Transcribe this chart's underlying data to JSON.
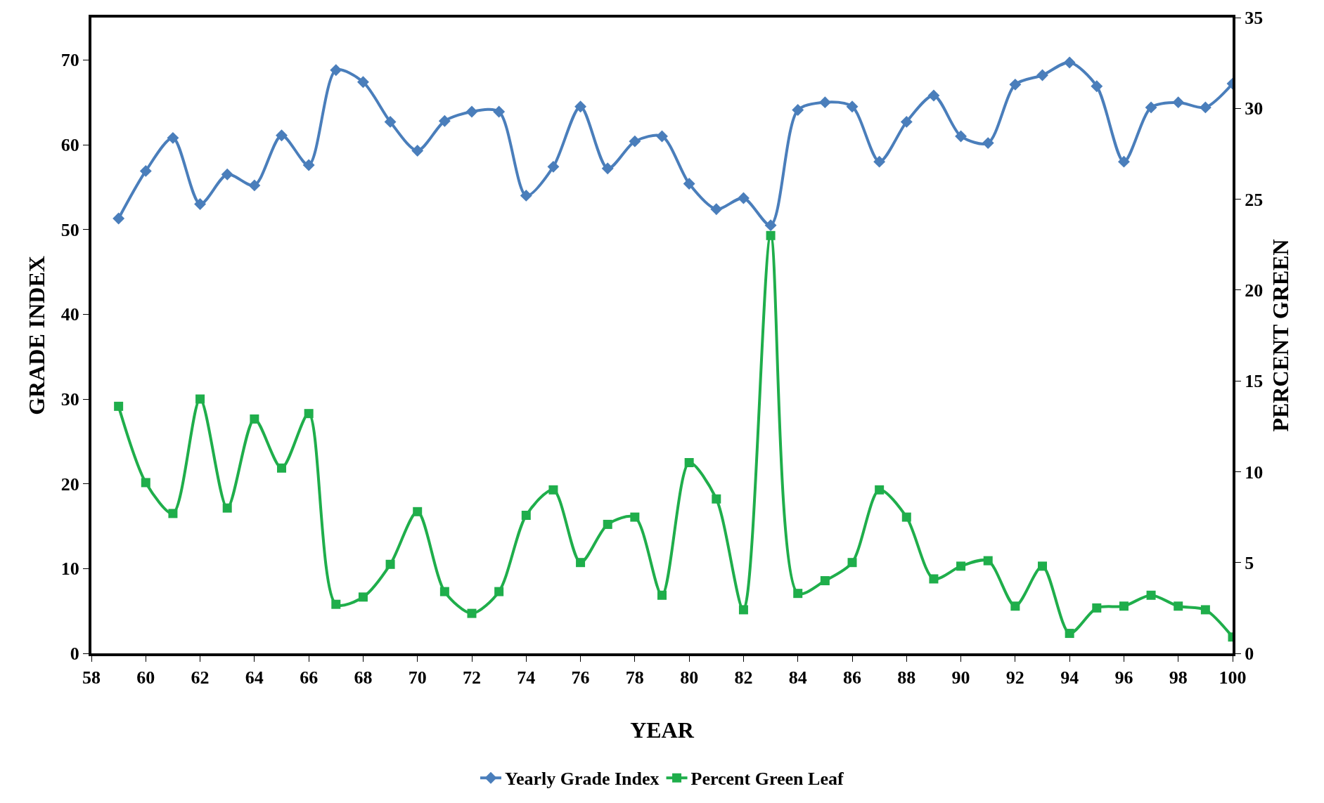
{
  "chart_data": {
    "type": "line",
    "xlabel": "YEAR",
    "ylabel": "GRADE INDEX",
    "y2label": "PERCENT GREEN",
    "x": [
      59,
      60,
      61,
      62,
      63,
      64,
      65,
      66,
      67,
      68,
      69,
      70,
      71,
      72,
      73,
      74,
      75,
      76,
      77,
      78,
      79,
      80,
      81,
      82,
      83,
      84,
      85,
      86,
      87,
      88,
      89,
      90,
      91,
      92,
      93,
      94,
      95,
      96,
      97,
      98,
      99,
      100
    ],
    "series": [
      {
        "name": "Yearly Grade Index",
        "color": "#4a7ebb",
        "marker": "diamond",
        "values": [
          51.3,
          56.9,
          60.8,
          53,
          56.5,
          55.2,
          61.1,
          57.6,
          68.8,
          67.4,
          62.7,
          59.3,
          62.8,
          63.9,
          63.9,
          54,
          57.4,
          64.5,
          57.2,
          60.4,
          61,
          55.4,
          52.4,
          53.7,
          50.5,
          64.1,
          65,
          64.5,
          58,
          62.7,
          65.8,
          61,
          60.2,
          67.1,
          68.2,
          69.7,
          66.9,
          58,
          64.4,
          65,
          64.4,
          67.2
        ]
      },
      {
        "name": "Percent Green Leaf",
        "color": "#1fae4b",
        "marker": "square",
        "axis": "y2",
        "values": [
          13.6,
          9.4,
          7.7,
          14,
          8,
          12.9,
          10.2,
          13.2,
          2.7,
          3.1,
          4.9,
          7.8,
          3.4,
          2.2,
          3.4,
          7.6,
          9,
          5,
          7.1,
          7.5,
          3.2,
          10.5,
          8.5,
          2.4,
          23,
          3.3,
          4,
          5,
          9,
          7.5,
          4.1,
          4.8,
          5.1,
          2.6,
          4.8,
          1.1,
          2.5,
          2.6,
          3.2,
          2.6,
          2.4,
          0.9
        ]
      }
    ],
    "xlim": [
      58,
      100
    ],
    "xticks": [
      {
        "value": 58,
        "label": "58"
      },
      {
        "value": 60,
        "label": "60"
      },
      {
        "value": 62,
        "label": "62"
      },
      {
        "value": 64,
        "label": "64"
      },
      {
        "value": 66,
        "label": "66"
      },
      {
        "value": 68,
        "label": "68"
      },
      {
        "value": 70,
        "label": "70"
      },
      {
        "value": 72,
        "label": "72"
      },
      {
        "value": 74,
        "label": "74"
      },
      {
        "value": 76,
        "label": "76"
      },
      {
        "value": 78,
        "label": "78"
      },
      {
        "value": 80,
        "label": "80"
      },
      {
        "value": 82,
        "label": "82"
      },
      {
        "value": 84,
        "label": "84"
      },
      {
        "value": 86,
        "label": "86"
      },
      {
        "value": 88,
        "label": "88"
      },
      {
        "value": 90,
        "label": "90"
      },
      {
        "value": 92,
        "label": "92"
      },
      {
        "value": 94,
        "label": "94"
      },
      {
        "value": 96,
        "label": "96"
      },
      {
        "value": 98,
        "label": "98"
      },
      {
        "value": 100,
        "label": "100"
      }
    ],
    "ylim": [
      0,
      75
    ],
    "yticks": [
      0,
      10,
      20,
      30,
      40,
      50,
      60,
      70
    ],
    "y2lim": [
      0,
      35
    ],
    "y2ticks": [
      0,
      5,
      10,
      15,
      20,
      25,
      30,
      35
    ],
    "legend": "bottom",
    "line_style": "solid"
  }
}
